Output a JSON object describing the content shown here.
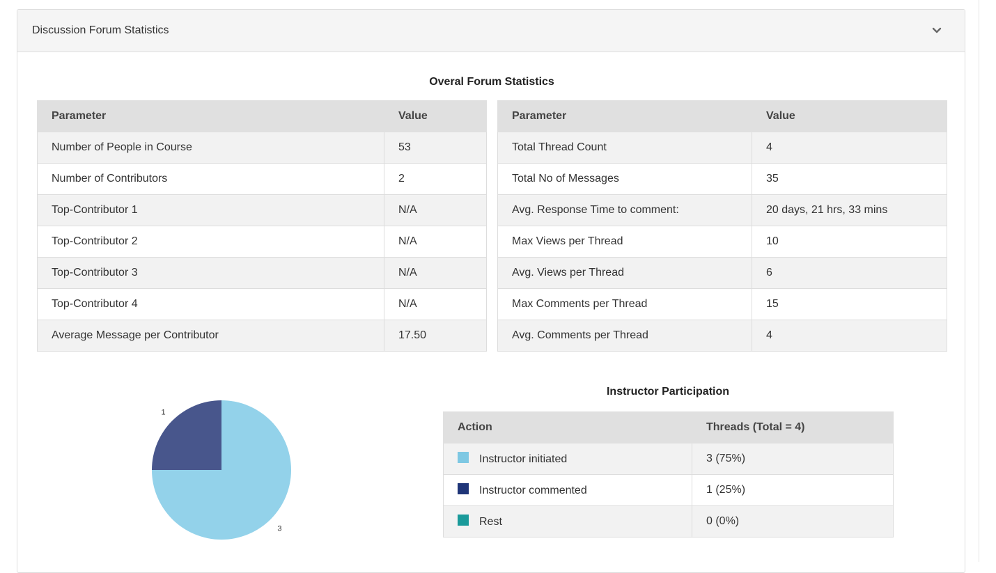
{
  "panel": {
    "title": "Discussion Forum Statistics",
    "toggle_icon": "chevron-down-icon"
  },
  "overall": {
    "title": "Overal Forum Statistics",
    "left_table": {
      "headers": [
        "Parameter",
        "Value"
      ],
      "rows": [
        [
          "Number of People in Course",
          "53"
        ],
        [
          "Number of Contributors",
          "2"
        ],
        [
          "Top-Contributor 1",
          "N/A"
        ],
        [
          "Top-Contributor 2",
          "N/A"
        ],
        [
          "Top-Contributor 3",
          "N/A"
        ],
        [
          "Top-Contributor 4",
          "N/A"
        ],
        [
          "Average Message per Contributor",
          "17.50"
        ]
      ]
    },
    "right_table": {
      "headers": [
        "Parameter",
        "Value"
      ],
      "rows": [
        [
          "Total Thread Count",
          "4"
        ],
        [
          "Total No of Messages",
          "35"
        ],
        [
          "Avg. Response Time to comment:",
          "20 days, 21 hrs, 33 mins"
        ],
        [
          "Max Views per Thread",
          "10"
        ],
        [
          "Avg. Views per Thread",
          "6"
        ],
        [
          "Max Comments per Thread",
          "15"
        ],
        [
          "Avg. Comments per Thread",
          "4"
        ]
      ]
    }
  },
  "instructor": {
    "title": "Instructor Participation",
    "headers": [
      "Action",
      "Threads (Total = 4)"
    ],
    "rows": [
      {
        "label": "Instructor initiated",
        "value": "3 (75%)",
        "color": "#7ec8e3"
      },
      {
        "label": "Instructor commented",
        "value": "1 (25%)",
        "color": "#1f3578"
      },
      {
        "label": "Rest",
        "value": "0 (0%)",
        "color": "#1a9a9a"
      }
    ]
  },
  "chart_data": {
    "type": "pie",
    "slices": [
      {
        "label": "3",
        "value": 3,
        "color": "#93d2ea"
      },
      {
        "label": "1",
        "value": 1,
        "color": "#48568c"
      },
      {
        "label": "0",
        "value": 0,
        "color": "#1a9a9a"
      }
    ],
    "title": "",
    "legend": "none"
  }
}
